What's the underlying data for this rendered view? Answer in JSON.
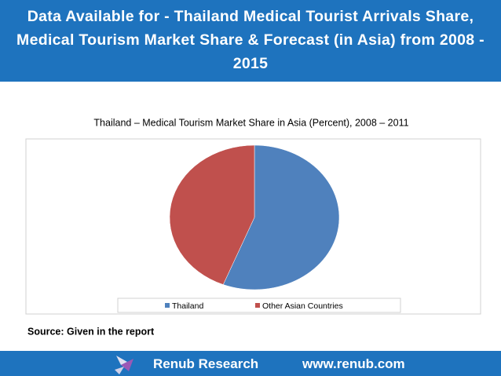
{
  "header": {
    "title": "Data Available for - Thailand Medical Tourist Arrivals Share, Medical Tourism Market Share & Forecast (in Asia) from 2008 - 2015"
  },
  "chart_data": {
    "type": "pie",
    "title": "Thailand – Medical Tourism Market Share in Asia (Percent), 2008 – 2011",
    "categories": [
      "Thailand",
      "Other Asian Countries"
    ],
    "values": [
      56,
      44
    ],
    "colors": [
      "#4f81bd",
      "#c0504d"
    ],
    "legend": "bottom",
    "source": "Source: Given in the report"
  },
  "footer": {
    "brand": "Renub Research",
    "url": "www.renub.com"
  }
}
